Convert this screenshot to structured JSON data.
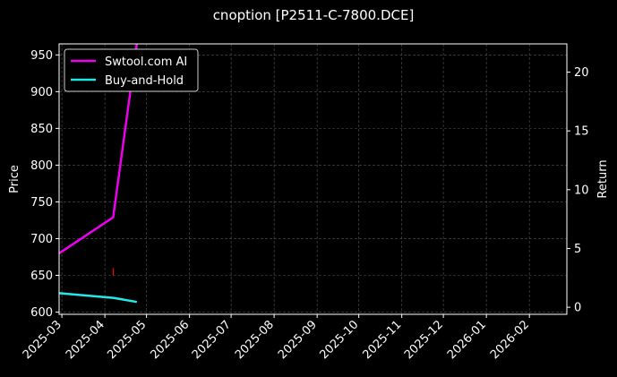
{
  "chart_data": {
    "type": "line",
    "title": "cnoption [P2511-C-7800.DCE]",
    "xlabel": "",
    "ylabel_left": "Price",
    "ylabel_right": "Return",
    "x_tick_labels": [
      "2025-03",
      "2025-04",
      "2025-05",
      "2025-06",
      "2025-07",
      "2025-08",
      "2025-09",
      "2025-10",
      "2025-11",
      "2025-12",
      "2026-01",
      "2026-02"
    ],
    "y_left_ticks": [
      "600",
      "650",
      "700",
      "750",
      "800",
      "850",
      "900",
      "950"
    ],
    "y_right_ticks": [
      "0",
      "5",
      "10",
      "15",
      "20"
    ],
    "y_left_range": [
      597,
      965
    ],
    "y_right_range": [
      -0.6,
      22.4
    ],
    "x_range": [
      "2025-02-27",
      "2026-02-28"
    ],
    "grid": true,
    "legend_position": "top-left",
    "series": [
      {
        "name": "Swtool.com AI",
        "color": "#ee00ee",
        "axis": "left",
        "points": [
          {
            "x": "2025-02-27",
            "y": 680
          },
          {
            "x": "2025-04-07",
            "y": 729
          },
          {
            "x": "2025-04-24",
            "y": 965
          }
        ]
      },
      {
        "name": "Buy-and-Hold",
        "color": "#22e8e8",
        "axis": "right",
        "points": [
          {
            "x": "2025-02-27",
            "y": 1.2
          },
          {
            "x": "2025-04-07",
            "y": 0.8
          },
          {
            "x": "2025-04-24",
            "y": 0.45
          }
        ]
      }
    ],
    "markers": [
      {
        "x": "2025-04-07",
        "y_low": 650,
        "y_high": 660,
        "color": "#ff0000"
      }
    ]
  }
}
